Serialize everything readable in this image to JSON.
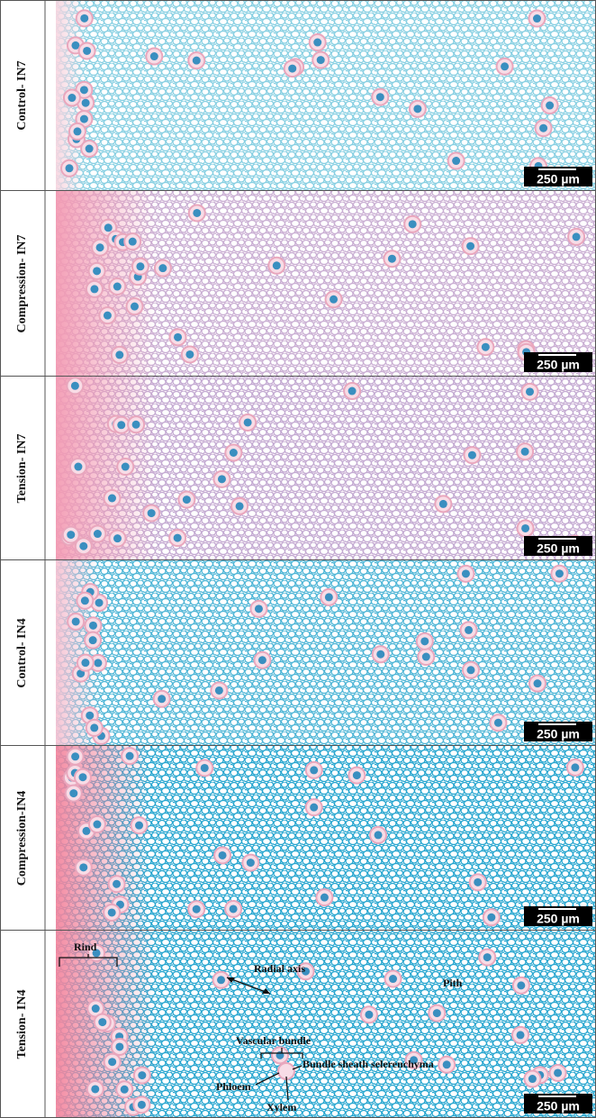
{
  "panels": [
    {
      "label": "Control- IN7",
      "scale_bar": "250 µm"
    },
    {
      "label": "Compression- IN7",
      "scale_bar": "250 µm"
    },
    {
      "label": "Tension- IN7",
      "scale_bar": "250 µm"
    },
    {
      "label": "Control- IN4",
      "scale_bar": "250 µm"
    },
    {
      "label": "Compression-IN4",
      "scale_bar": "250 µm"
    },
    {
      "label": "Tension- IN4",
      "scale_bar": "250 µm"
    }
  ],
  "annotations": {
    "rind": "Rind",
    "radial_axis": "Radial axis",
    "pith": "Pith",
    "vascular_bundle": "Vascular bundle",
    "bundle_sheath": "Bundle sheath selerenchyma",
    "phloem": "Phloem",
    "xylem": "Xylem"
  }
}
